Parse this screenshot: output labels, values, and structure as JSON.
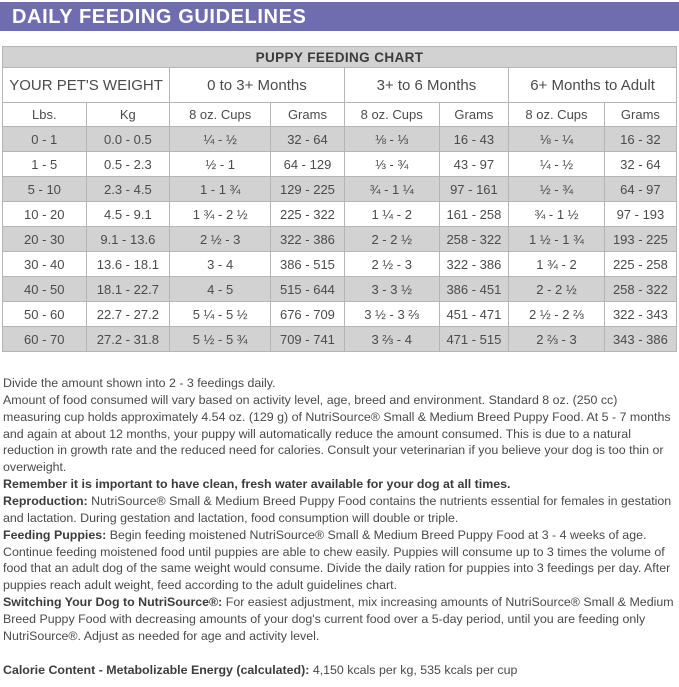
{
  "colors": {
    "banner_purple": "#6f6cb0",
    "row_shade_gray": "#d2d2d2",
    "body_text_gray": "#4a4a4a"
  },
  "banner": {
    "title": "DAILY FEEDING GUIDELINES"
  },
  "table": {
    "title": "PUPPY FEEDING CHART",
    "group_headers": [
      "YOUR PET'S WEIGHT",
      "0 to 3+ Months",
      "3+ to 6 Months",
      "6+ Months to Adult"
    ],
    "sub_headers": [
      "Lbs.",
      "Kg",
      "8 oz. Cups",
      "Grams",
      "8 oz. Cups",
      "Grams",
      "8 oz. Cups",
      "Grams"
    ],
    "rows": [
      [
        "0 - 1",
        "0.0 - 0.5",
        "¼ - ½",
        "32 - 64",
        "⅛ - ⅓",
        "16 - 43",
        "⅛ - ¼",
        "16 - 32"
      ],
      [
        "1 - 5",
        "0.5 - 2.3",
        "½ - 1",
        "64 - 129",
        "⅓ - ¾",
        "43 - 97",
        "¼ - ½",
        "32 - 64"
      ],
      [
        "5 - 10",
        "2.3 - 4.5",
        "1 - 1 ¾",
        "129 - 225",
        "¾ - 1 ¼",
        "97 - 161",
        "½ - ¾",
        "64 - 97"
      ],
      [
        "10 - 20",
        "4.5 - 9.1",
        "1 ¾ - 2 ½",
        "225 - 322",
        "1 ¼ - 2",
        "161 - 258",
        "¾ - 1 ½",
        "97 - 193"
      ],
      [
        "20 - 30",
        "9.1 - 13.6",
        "2 ½ - 3",
        "322 - 386",
        "2 - 2 ½",
        "258 - 322",
        "1 ½ - 1 ¾",
        "193 - 225"
      ],
      [
        "30 - 40",
        "13.6 - 18.1",
        "3 - 4",
        "386 - 515",
        "2 ½ - 3",
        "322 - 386",
        "1 ¾ - 2",
        "225 - 258"
      ],
      [
        "40 - 50",
        "18.1 - 22.7",
        "4 - 5",
        "515 - 644",
        "3 - 3 ½",
        "386 - 451",
        "2 - 2 ½",
        "258 - 322"
      ],
      [
        "50 - 60",
        "22.7 - 27.2",
        "5 ¼ - 5 ½",
        "676 - 709",
        "3 ½ - 3 ⅔",
        "451 - 471",
        "2 ½ - 2 ⅔",
        "322 - 343"
      ],
      [
        "60 - 70",
        "27.2 - 31.8",
        "5 ½ - 5 ¾",
        "709 - 741",
        "3 ⅔ - 4",
        "471 - 515",
        "2 ⅔ - 3",
        "343 - 386"
      ]
    ]
  },
  "notes": {
    "paragraphs": [
      {
        "bold": "",
        "text": "Divide the amount shown into 2 - 3 feedings daily."
      },
      {
        "bold": "",
        "text": "Amount of food consumed will vary based on activity level, age, breed and environment. Standard 8 oz. (250 cc) measuring cup holds approximately 4.54 oz. (129 g) of NutriSource® Small & Medium Breed Puppy Food. At 5 - 7 months and again at about 12 months, your puppy will automatically reduce the amount consumed. This is due to a natural reduction in growth rate and the reduced need for calories. Consult your veterinarian if you believe your dog is too thin or overweight."
      },
      {
        "bold": "Remember it is important to have clean, fresh water available for your dog at all times.",
        "text": ""
      },
      {
        "bold": "Reproduction:",
        "text": " NutriSource® Small & Medium Breed Puppy Food contains the nutrients essential for females in gestation and lactation. During gestation and lactation, food consumption will double or triple."
      },
      {
        "bold": "Feeding Puppies:",
        "text": " Begin feeding moistened NutriSource® Small & Medium Breed Puppy Food at 3 - 4 weeks of age. Continue feeding moistened food until puppies are able to chew easily. Puppies will consume up to 3 times the volume of food that an adult dog of the same weight would consume. Divide the daily ration for puppies into 3 feedings per day. After puppies reach adult weight, feed according to the adult guidelines chart."
      },
      {
        "bold": "Switching Your Dog to NutriSource®:",
        "text": " For easiest adjustment, mix increasing amounts of NutriSource® Small & Medium Breed Puppy Food with decreasing amounts of your dog's current food over a 5-day period, until you are feeding only NutriSource®. Adjust as needed for age and activity level."
      }
    ]
  },
  "calorie": {
    "bold": "Calorie Content - Metabolizable Energy (calculated):",
    "text": " 4,150 kcals per kg, 535 kcals per cup"
  }
}
